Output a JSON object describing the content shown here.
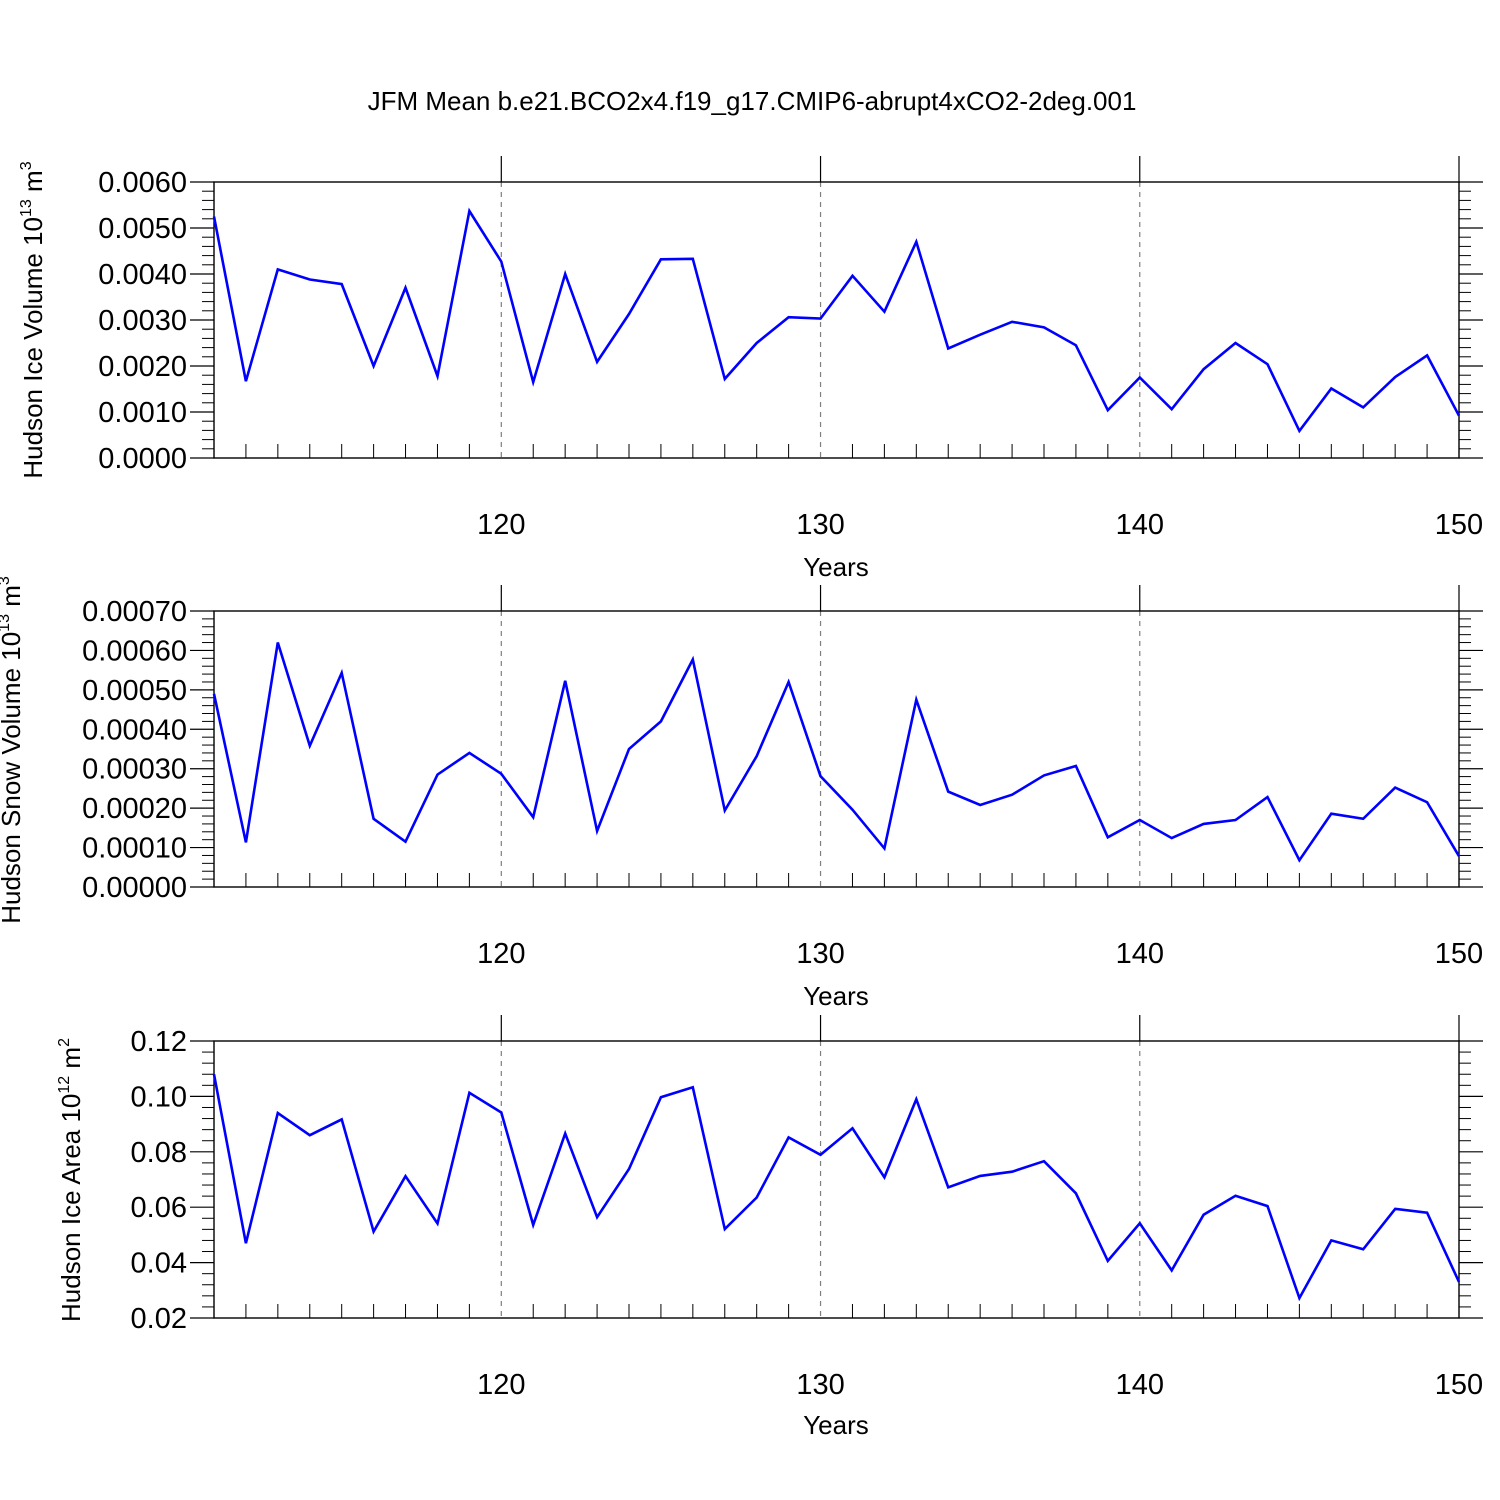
{
  "title": "JFM Mean b.e21.BCO2x4.f19_g17.CMIP6-abrupt4xCO2-2deg.001",
  "colors": {
    "line": "#0000ff",
    "axis": "#000000",
    "gridline": "#7f7f7f"
  },
  "chart_data": [
    {
      "type": "line",
      "ylabel": "Hudson Ice Volume 10",
      "ylabel_exp": "13",
      "ylabel_unit": " m",
      "ylabel_unit_exp": "3",
      "xlabel": "Years",
      "xlim": [
        111,
        150
      ],
      "ylim": [
        0,
        0.006
      ],
      "xticks": [
        120,
        130,
        140,
        150
      ],
      "xtick_labels": [
        "120",
        "130",
        "140",
        "150"
      ],
      "yticks": [
        0,
        0.001,
        0.002,
        0.003,
        0.004,
        0.005,
        0.006
      ],
      "ytick_labels": [
        "0.0000",
        "0.0010",
        "0.0020",
        "0.0030",
        "0.0040",
        "0.0050",
        "0.0060"
      ],
      "grid": "dashed vertical at major x ticks",
      "series": [
        {
          "x": [
            111,
            112,
            113,
            114,
            115,
            116,
            117,
            118,
            119,
            120,
            121,
            122,
            123,
            124,
            125,
            126,
            127,
            128,
            129,
            130,
            131,
            132,
            133,
            134,
            135,
            136,
            137,
            138,
            139,
            140,
            141,
            142,
            143,
            144,
            145,
            146,
            147,
            148,
            149,
            150
          ],
          "values": [
            0.00525,
            0.00167,
            0.0041,
            0.00388,
            0.00378,
            0.002,
            0.0037,
            0.00178,
            0.00537,
            0.00427,
            0.00165,
            0.004,
            0.00209,
            0.00313,
            0.00432,
            0.00433,
            0.00172,
            0.0025,
            0.00306,
            0.00303,
            0.00396,
            0.00318,
            0.0047,
            0.00238,
            0.00268,
            0.00296,
            0.00284,
            0.00245,
            0.00104,
            0.00175,
            0.00106,
            0.00193,
            0.0025,
            0.00204,
            0.00059,
            0.00151,
            0.0011,
            0.00176,
            0.00223,
            0.00092
          ]
        }
      ]
    },
    {
      "type": "line",
      "ylabel": "Hudson Snow Volume 10",
      "ylabel_exp": "13",
      "ylabel_unit": " m",
      "ylabel_unit_exp": "3",
      "xlabel": "Years",
      "xlim": [
        111,
        150
      ],
      "ylim": [
        0,
        0.0007
      ],
      "xticks": [
        120,
        130,
        140,
        150
      ],
      "xtick_labels": [
        "120",
        "130",
        "140",
        "150"
      ],
      "yticks": [
        0,
        0.0001,
        0.0002,
        0.0003,
        0.0004,
        0.0005,
        0.0006,
        0.0007
      ],
      "ytick_labels": [
        "0.00000",
        "0.00010",
        "0.00020",
        "0.00030",
        "0.00040",
        "0.00050",
        "0.00060",
        "0.00070"
      ],
      "grid": "dashed vertical at major x ticks",
      "series": [
        {
          "x": [
            111,
            112,
            113,
            114,
            115,
            116,
            117,
            118,
            119,
            120,
            121,
            122,
            123,
            124,
            125,
            126,
            127,
            128,
            129,
            130,
            131,
            132,
            133,
            134,
            135,
            136,
            137,
            138,
            139,
            140,
            141,
            142,
            143,
            144,
            145,
            146,
            147,
            148,
            149,
            150
          ],
          "values": [
            0.00049,
            0.000113,
            0.00062,
            0.000358,
            0.000543,
            0.000173,
            0.000115,
            0.000285,
            0.00034,
            0.000287,
            0.000177,
            0.000523,
            0.000142,
            0.00035,
            0.00042,
            0.000577,
            0.000194,
            0.000332,
            0.00052,
            0.000281,
            0.000196,
            9.8e-05,
            0.000475,
            0.000242,
            0.000208,
            0.000234,
            0.000283,
            0.000307,
            0.000126,
            0.00017,
            0.000124,
            0.00016,
            0.00017,
            0.000228,
            6.8e-05,
            0.000186,
            0.000173,
            0.000252,
            0.000215,
            7.8e-05
          ]
        }
      ]
    },
    {
      "type": "line",
      "ylabel": "Hudson Ice Area 10",
      "ylabel_exp": "12",
      "ylabel_unit": " m",
      "ylabel_unit_exp": "2",
      "xlabel": "Years",
      "xlim": [
        111,
        150
      ],
      "ylim": [
        0.02,
        0.12
      ],
      "xticks": [
        120,
        130,
        140,
        150
      ],
      "xtick_labels": [
        "120",
        "130",
        "140",
        "150"
      ],
      "yticks": [
        0.02,
        0.04,
        0.06,
        0.08,
        0.1,
        0.12
      ],
      "ytick_labels": [
        "0.02",
        "0.04",
        "0.06",
        "0.08",
        "0.10",
        "0.12"
      ],
      "grid": "dashed vertical at major x ticks",
      "series": [
        {
          "x": [
            111,
            112,
            113,
            114,
            115,
            116,
            117,
            118,
            119,
            120,
            121,
            122,
            123,
            124,
            125,
            126,
            127,
            128,
            129,
            130,
            131,
            132,
            133,
            134,
            135,
            136,
            137,
            138,
            139,
            140,
            141,
            142,
            143,
            144,
            145,
            146,
            147,
            148,
            149,
            150
          ],
          "values": [
            0.108,
            0.047,
            0.094,
            0.086,
            0.0917,
            0.0512,
            0.0712,
            0.0541,
            0.1013,
            0.0942,
            0.0536,
            0.0866,
            0.0564,
            0.0738,
            0.0997,
            0.1033,
            0.0521,
            0.0635,
            0.0852,
            0.0789,
            0.0885,
            0.0708,
            0.099,
            0.0672,
            0.0713,
            0.0728,
            0.0766,
            0.065,
            0.0406,
            0.0542,
            0.0372,
            0.0573,
            0.0641,
            0.0604,
            0.0272,
            0.048,
            0.0448,
            0.0594,
            0.058,
            0.033
          ]
        }
      ]
    }
  ]
}
